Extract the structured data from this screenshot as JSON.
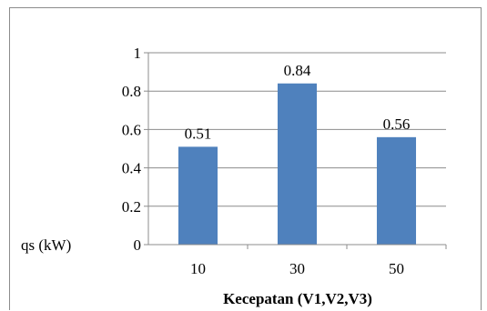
{
  "chart_data": {
    "type": "bar",
    "title": "",
    "xlabel": "Kecepatan (V1,V2,V3)",
    "ylabel": "qs (kW)",
    "categories": [
      "10",
      "30",
      "50"
    ],
    "series": [
      {
        "values": [
          0.51,
          0.84,
          0.56
        ]
      }
    ],
    "data_labels": [
      "0.51",
      "0.84",
      "0.56"
    ],
    "y_ticks": [
      "0",
      "0.2",
      "0.4",
      "0.6",
      "0.8",
      "1"
    ],
    "ylim": [
      0,
      1
    ],
    "grid": true,
    "legend": "none",
    "colors": {
      "bar": "#4f81bd",
      "grid": "#8c8c8c",
      "axis": "#8c8c8c",
      "frame": "#8c8c8c"
    }
  }
}
